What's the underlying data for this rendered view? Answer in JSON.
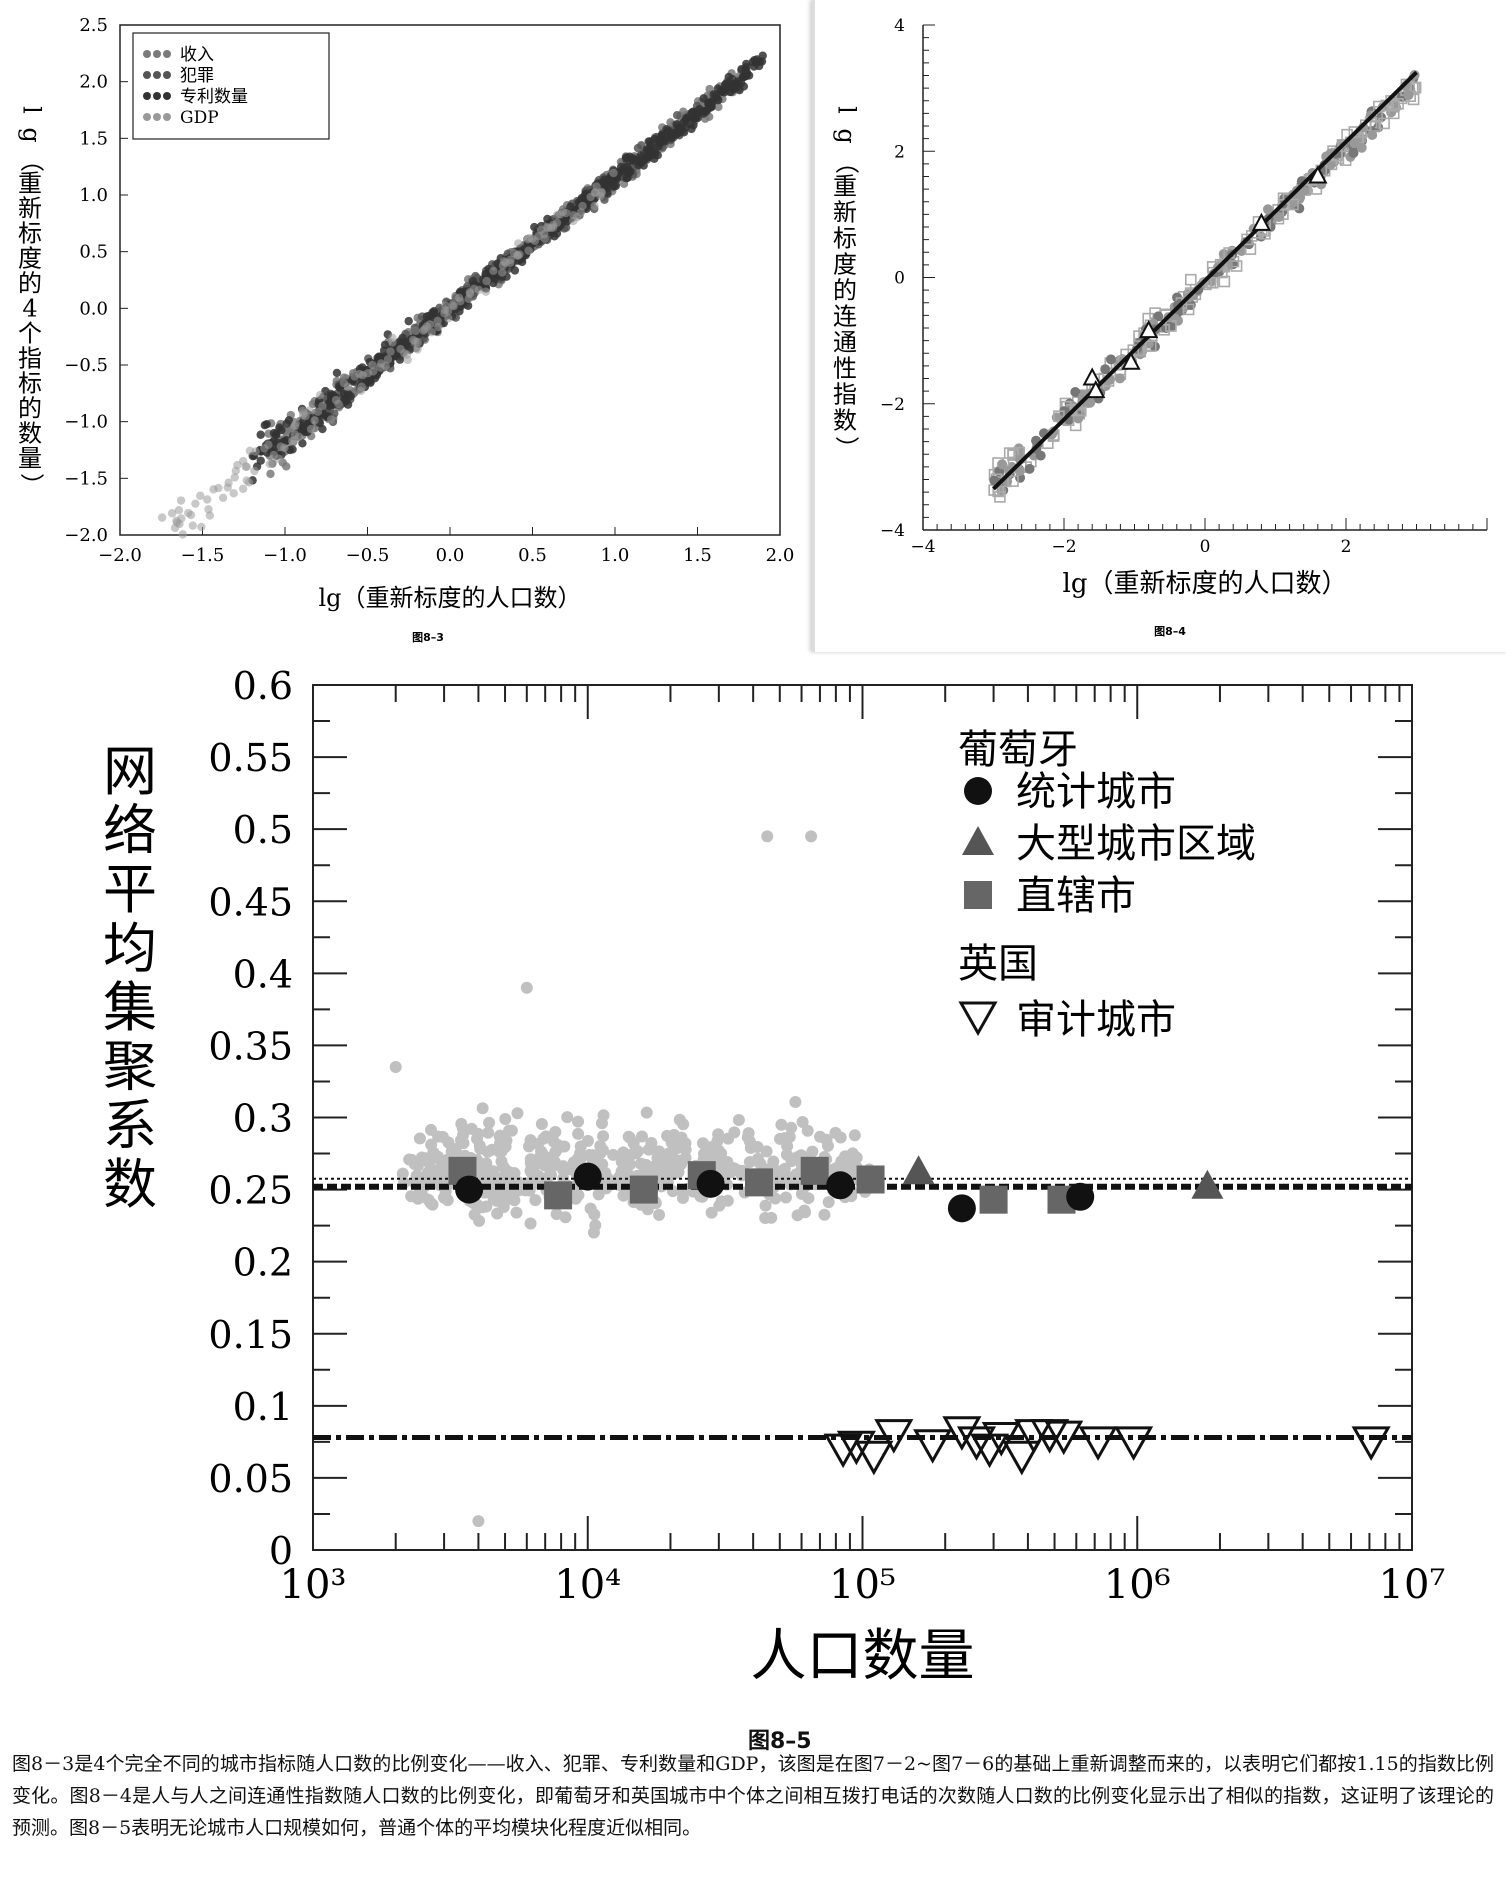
{
  "chart_data": [
    {
      "type": "scatter",
      "figure_label": "图8–3",
      "xlabel": "lg（重新标度的人口数）",
      "ylabel": "lg（重新标度的4个指标的数量）",
      "xlim": [
        -2.0,
        2.0
      ],
      "ylim": [
        -2.0,
        2.5
      ],
      "xticks": [
        "−2.0",
        "−1.5",
        "−1.0",
        "−0.5",
        "0.0",
        "0.5",
        "1.0",
        "1.5",
        "2.0"
      ],
      "yticks": [
        "−2.0",
        "−1.5",
        "−1.0",
        "−0.5",
        "0.0",
        "0.5",
        "1.0",
        "1.5",
        "2.0",
        "2.5"
      ],
      "legend_position": "top-left",
      "series": [
        {
          "name": "收入",
          "color": "#7a7a7a",
          "slope": 1.15,
          "x_range": [
            -1.1,
            1.8
          ]
        },
        {
          "name": "犯罪",
          "color": "#555555",
          "slope": 1.15,
          "x_range": [
            -0.8,
            1.5
          ]
        },
        {
          "name": "专利数量",
          "color": "#333333",
          "slope": 1.15,
          "x_range": [
            -1.2,
            1.9
          ]
        },
        {
          "name": "GDP",
          "color": "#9a9a9a",
          "slope": 1.15,
          "x_range": [
            -1.75,
            1.0
          ]
        }
      ]
    },
    {
      "type": "scatter",
      "figure_label": "图8–4",
      "xlabel": "lg（重新标度的人口数）",
      "ylabel": "lg（重新标度的连通性指数）",
      "xlim": [
        -4,
        4
      ],
      "ylim": [
        -4,
        4
      ],
      "xticks": [
        "−4",
        "−2",
        "0",
        "2"
      ],
      "yticks": [
        "−4",
        "−2",
        "0",
        "2",
        "4"
      ],
      "fit_line": {
        "x": [
          -3.0,
          3.0
        ],
        "y": [
          -3.35,
          3.25
        ]
      },
      "triangles": [
        {
          "x": -1.6,
          "y": -1.6
        },
        {
          "x": -1.55,
          "y": -1.8
        },
        {
          "x": -1.05,
          "y": -1.35
        },
        {
          "x": -0.8,
          "y": -0.85
        },
        {
          "x": 0.8,
          "y": 0.85
        },
        {
          "x": 1.6,
          "y": 1.6
        }
      ]
    },
    {
      "type": "scatter",
      "figure_label": "图8–5",
      "xlabel": "人口数量",
      "ylabel": "网络平均集聚系数",
      "xscale": "log",
      "xlim": [
        1000,
        10000000
      ],
      "ylim": [
        0,
        0.6
      ],
      "xticks": [
        "10³",
        "10⁴",
        "10⁵",
        "10⁶",
        "10⁷"
      ],
      "yticks": [
        "0",
        "0.05",
        "0.1",
        "0.15",
        "0.2",
        "0.25",
        "0.3",
        "0.35",
        "0.4",
        "0.45",
        "0.5",
        "0.55",
        "0.6"
      ],
      "legend": {
        "group1": "葡萄牙",
        "items1": [
          "统计城市",
          "大型城市区域",
          "直辖市"
        ],
        "group2": "英国",
        "items2": [
          "审计城市"
        ]
      },
      "reference_lines": [
        {
          "name": "葡萄牙",
          "y": 0.252,
          "style": "dashed"
        },
        {
          "name": "英国",
          "y": 0.078,
          "style": "dash-dot"
        }
      ],
      "series": [
        {
          "name": "统计城市",
          "marker": "circle",
          "color": "#111111",
          "x": [
            3700,
            10000,
            28000,
            83000,
            230000,
            620000
          ],
          "y": [
            0.25,
            0.259,
            0.254,
            0.253,
            0.237,
            0.245
          ]
        },
        {
          "name": "大型城市区域",
          "marker": "triangle",
          "color": "#555555",
          "x": [
            160000,
            1800000
          ],
          "y": [
            0.262,
            0.252
          ]
        },
        {
          "name": "直辖市",
          "marker": "square",
          "color": "#666666",
          "x": [
            3500,
            7800,
            16000,
            26000,
            42000,
            67000,
            107000,
            300000,
            530000
          ],
          "y": [
            0.263,
            0.246,
            0.25,
            0.26,
            0.255,
            0.263,
            0.257,
            0.243,
            0.243
          ]
        },
        {
          "name": "审计城市",
          "marker": "triangle-down",
          "color": "#111111",
          "x": [
            85000,
            95000,
            110000,
            130000,
            180000,
            230000,
            260000,
            290000,
            320000,
            380000,
            420000,
            480000,
            540000,
            720000,
            970000,
            7100000
          ],
          "y": [
            0.07,
            0.072,
            0.065,
            0.08,
            0.073,
            0.082,
            0.075,
            0.07,
            0.078,
            0.065,
            0.08,
            0.08,
            0.079,
            0.075,
            0.075,
            0.075
          ]
        }
      ]
    }
  ],
  "fig5_label": "图8–5",
  "caption": "图8－3是4个完全不同的城市指标随人口数的比例变化——收入、犯罪、专利数量和GDP，该图是在图7－2~图7－6的基础上重新调整而来的，以表明它们都按1.15的指数比例变化。图8－4是人与人之间连通性指数随人口数的比例变化，即葡萄牙和英国城市中个体之间相互拨打电话的次数随人口数的比例变化显示出了相似的指数，这证明了该理论的预测。图8－5表明无论城市人口规模如何，普通个体的平均模块化程度近似相同。"
}
